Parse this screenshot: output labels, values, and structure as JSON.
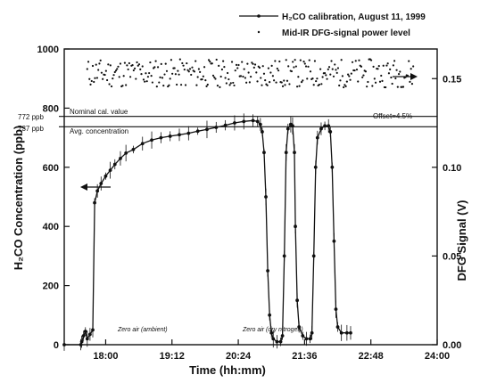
{
  "chart_data": {
    "type": "line",
    "xlabel": "Time (hh:mm)",
    "ylabel_left": "H₂CO Concentration (ppb)",
    "ylabel_right": "DFG Signal (V)",
    "x_ticks": [
      "18:00",
      "19:12",
      "20:24",
      "21:36",
      "22:48",
      "24:00"
    ],
    "x_range_minutes": [
      1035,
      1440
    ],
    "ylim_left": [
      0,
      1000
    ],
    "y_ticks_left": [
      "0",
      "200",
      "400",
      "600",
      "800",
      "1000"
    ],
    "ylim_right": [
      0.0,
      0.1667
    ],
    "y_ticks_right": [
      "0.00",
      "0.05",
      "0.10",
      "0.15"
    ],
    "grid": false,
    "legend_position": "top-right",
    "series": [
      {
        "name": "H₂CO calibration, August 11, 1999",
        "axis": "left",
        "style": "line",
        "points": [
          [
            1035,
            0
          ],
          [
            1053,
            0
          ],
          [
            1054,
            10
          ],
          [
            1056,
            30
          ],
          [
            1058,
            45
          ],
          [
            1060,
            20
          ],
          [
            1063,
            35
          ],
          [
            1066,
            50
          ],
          [
            1068,
            480
          ],
          [
            1071,
            520
          ],
          [
            1075,
            545
          ],
          [
            1080,
            570
          ],
          [
            1085,
            590
          ],
          [
            1090,
            610
          ],
          [
            1096,
            630
          ],
          [
            1102,
            648
          ],
          [
            1110,
            660
          ],
          [
            1120,
            680
          ],
          [
            1130,
            692
          ],
          [
            1140,
            700
          ],
          [
            1150,
            705
          ],
          [
            1160,
            710
          ],
          [
            1170,
            715
          ],
          [
            1180,
            722
          ],
          [
            1190,
            728
          ],
          [
            1200,
            735
          ],
          [
            1210,
            742
          ],
          [
            1220,
            750
          ],
          [
            1230,
            755
          ],
          [
            1240,
            758
          ],
          [
            1245,
            755
          ],
          [
            1248,
            745
          ],
          [
            1250,
            720
          ],
          [
            1252,
            650
          ],
          [
            1254,
            500
          ],
          [
            1256,
            250
          ],
          [
            1258,
            100
          ],
          [
            1260,
            40
          ],
          [
            1262,
            20
          ],
          [
            1266,
            10
          ],
          [
            1270,
            10
          ],
          [
            1272,
            30
          ],
          [
            1274,
            300
          ],
          [
            1276,
            650
          ],
          [
            1278,
            730
          ],
          [
            1281,
            745
          ],
          [
            1283,
            740
          ],
          [
            1285,
            650
          ],
          [
            1286,
            400
          ],
          [
            1288,
            150
          ],
          [
            1290,
            60
          ],
          [
            1294,
            30
          ],
          [
            1298,
            20
          ],
          [
            1302,
            20
          ],
          [
            1304,
            40
          ],
          [
            1306,
            300
          ],
          [
            1308,
            600
          ],
          [
            1310,
            700
          ],
          [
            1314,
            730
          ],
          [
            1318,
            740
          ],
          [
            1322,
            740
          ],
          [
            1324,
            720
          ],
          [
            1326,
            600
          ],
          [
            1328,
            350
          ],
          [
            1330,
            120
          ],
          [
            1332,
            60
          ],
          [
            1336,
            40
          ],
          [
            1342,
            40
          ],
          [
            1346,
            40
          ]
        ]
      },
      {
        "name": "Mid-IR DFG-signal power level",
        "axis": "right",
        "style": "scatter",
        "value_range_V": [
          0.145,
          0.161
        ]
      }
    ],
    "annotations": {
      "nominal_cal_label": "Nominal cal. value",
      "nominal_cal_value": 772,
      "nominal_cal_tag": "772 ppb",
      "avg_conc_label": "Avg. concentration",
      "avg_conc_value": 737,
      "avg_conc_tag": "737 ppb",
      "offset_label": "Offset=4.5%",
      "zero_ambient": "Zero air (ambient)",
      "zero_dry": "Zero air (dry nitrogen)"
    }
  },
  "colors": {
    "ink": "#111111",
    "background": "#ffffff"
  }
}
